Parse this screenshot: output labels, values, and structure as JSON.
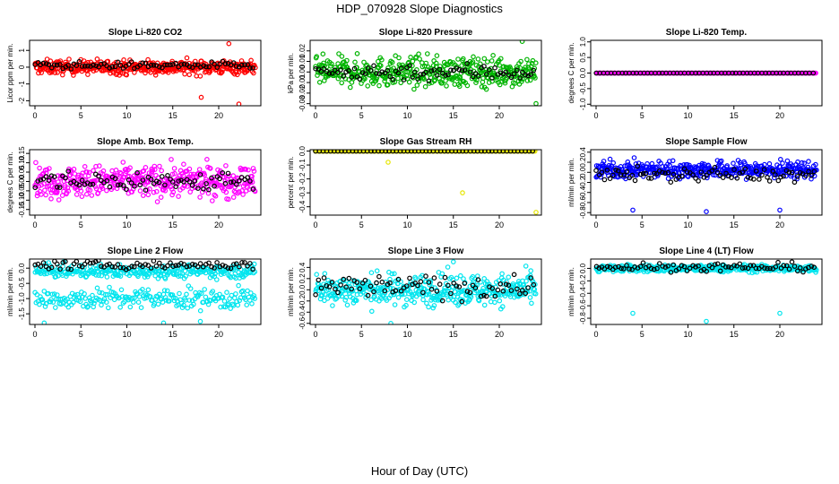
{
  "page": {
    "title": "HDP_070928  Slope Diagnostics",
    "xlabel": "Hour of Day (UTC)"
  },
  "chart_data": [
    {
      "type": "scatter",
      "title": "Slope Li-820 CO2",
      "ylabel": "Licor ppm per min.",
      "xlim": [
        0,
        24
      ],
      "ylim": [
        -2.3,
        1.6
      ],
      "xticks": [
        0,
        5,
        10,
        15,
        20
      ],
      "yticks": [
        -2,
        -1,
        0,
        1
      ],
      "ytick_labels": [
        "-2",
        "-1",
        "0",
        "1"
      ],
      "series": [
        {
          "name": "all",
          "color": "#ff0000",
          "center": 0,
          "spread": 0.3,
          "count": 420,
          "outliers": [
            [
              18.1,
              -1.8
            ],
            [
              21.1,
              1.4
            ],
            [
              22.2,
              -2.2
            ]
          ]
        },
        {
          "name": "hourly",
          "color": "#000000",
          "center": 0.1,
          "spread": 0.15,
          "count": 80
        }
      ]
    },
    {
      "type": "scatter",
      "title": "Slope Li-820 Pressure",
      "ylabel": "kPa per min.",
      "xlim": [
        0,
        24
      ],
      "ylim": [
        -0.032,
        0.03
      ],
      "xticks": [
        0,
        5,
        10,
        15,
        20
      ],
      "yticks": [
        -0.03,
        -0.02,
        -0.01,
        0,
        0.01,
        0.02
      ],
      "ytick_labels": [
        "-0.03",
        "-0.02",
        "-0.01",
        "0.00",
        "0.01",
        "0.02"
      ],
      "series": [
        {
          "name": "all",
          "color": "#00b400",
          "center": 0,
          "spread": 0.01,
          "count": 420,
          "outliers": [
            [
              22.5,
              0.029
            ],
            [
              24,
              -0.03
            ]
          ]
        },
        {
          "name": "hourly",
          "color": "#000000",
          "center": 0,
          "spread": 0.006,
          "count": 80
        }
      ]
    },
    {
      "type": "scatter",
      "title": "Slope Li-820 Temp.",
      "ylabel": "degrees C per min.",
      "xlim": [
        0,
        24
      ],
      "ylim": [
        -1.05,
        1.05
      ],
      "xticks": [
        0,
        5,
        10,
        15,
        20
      ],
      "yticks": [
        -1,
        -0.5,
        0,
        0.5,
        1
      ],
      "ytick_labels": [
        "-1.0",
        "-0.5",
        "0.0",
        "0.5",
        "1.0"
      ],
      "series": [
        {
          "name": "all",
          "color": "#ff00ff",
          "center": 0,
          "spread": 0,
          "count": 260,
          "outliers": []
        },
        {
          "name": "hourly",
          "color": "#000000",
          "center": 0,
          "spread": 0,
          "count": 60
        }
      ]
    },
    {
      "type": "scatter",
      "title": "Slope Amb. Box Temp.",
      "ylabel": "degrees C per min.",
      "xlim": [
        0,
        24
      ],
      "ylim": [
        -0.18,
        0.17
      ],
      "xticks": [
        0,
        5,
        10,
        15,
        20
      ],
      "yticks": [
        -0.15,
        -0.1,
        -0.05,
        0,
        0.05,
        0.1,
        0.15
      ],
      "ytick_labels": [
        "-0.15",
        "-0.10",
        "-0.05",
        "0.00",
        "0.05",
        "0.10",
        "0.15"
      ],
      "series": [
        {
          "name": "all",
          "color": "#ff00ff",
          "center": 0,
          "spread": 0.06,
          "count": 420,
          "outliers": []
        },
        {
          "name": "hourly",
          "color": "#000000",
          "center": 0,
          "spread": 0.04,
          "count": 80
        }
      ]
    },
    {
      "type": "scatter",
      "title": "Slope Gas Stream RH",
      "ylabel": "percent per min.",
      "xlim": [
        0,
        24
      ],
      "ylim": [
        -0.46,
        0.01
      ],
      "xticks": [
        0,
        5,
        10,
        15,
        20
      ],
      "yticks": [
        -0.4,
        -0.3,
        -0.2,
        -0.1,
        0
      ],
      "ytick_labels": [
        "-0.4",
        "-0.3",
        "-0.2",
        "-0.1",
        "0.0"
      ],
      "series": [
        {
          "name": "all",
          "color": "#e6e600",
          "center": 0,
          "spread": 0,
          "count": 200,
          "outliers": [
            [
              7.9,
              -0.08
            ],
            [
              16,
              -0.3
            ],
            [
              24,
              -0.44
            ],
            [
              0,
              0
            ]
          ]
        },
        {
          "name": "hourly",
          "color": "#000000",
          "center": 0,
          "spread": 0,
          "count": 60
        }
      ]
    },
    {
      "type": "scatter",
      "title": "Slope Sample Flow",
      "ylabel": "ml/min per min.",
      "xlim": [
        0,
        24
      ],
      "ylim": [
        -0.85,
        0.45
      ],
      "xticks": [
        0,
        5,
        10,
        15,
        20
      ],
      "yticks": [
        -0.8,
        -0.6,
        -0.4,
        -0.2,
        0,
        0.2,
        0.4
      ],
      "ytick_labels": [
        "-0.8",
        "-0.6",
        "-0.4",
        "-0.2",
        "0.0",
        "0.2",
        "0.4"
      ],
      "series": [
        {
          "name": "all",
          "color": "#0000ff",
          "center": 0.05,
          "spread": 0.12,
          "count": 420,
          "outliers": [
            [
              4,
              -0.75
            ],
            [
              12,
              -0.78
            ],
            [
              20,
              -0.75
            ]
          ]
        },
        {
          "name": "hourly",
          "color": "#000000",
          "center": -0.05,
          "spread": 0.1,
          "count": 80
        }
      ]
    },
    {
      "type": "scatter",
      "title": "Slope Line 2 Flow",
      "ylabel": "ml/min per min.",
      "xlim": [
        0,
        24
      ],
      "ylim": [
        -1.85,
        0.3
      ],
      "xticks": [
        0,
        5,
        10,
        15,
        20
      ],
      "yticks": [
        -1.5,
        -1,
        -0.5,
        0
      ],
      "ytick_labels": [
        "-1.5",
        "-1.0",
        "-0.5",
        "0.0"
      ],
      "series": [
        {
          "name": "all",
          "color": "#00e5ee",
          "center": -0.1,
          "spread": 0.15,
          "count": 300,
          "outliers": []
        },
        {
          "name": "all-low",
          "color": "#00e5ee",
          "center": -1.0,
          "spread": 0.25,
          "count": 220,
          "outliers": [
            [
              1,
              -1.8
            ],
            [
              14,
              -1.8
            ],
            [
              18,
              -1.75
            ]
          ]
        },
        {
          "name": "hourly",
          "color": "#000000",
          "center": 0.1,
          "spread": 0.1,
          "count": 80
        }
      ]
    },
    {
      "type": "scatter",
      "title": "Slope Line 3 Flow",
      "ylabel": "ml/min per min.",
      "xlim": [
        0,
        24
      ],
      "ylim": [
        -0.62,
        0.55
      ],
      "xticks": [
        0,
        5,
        10,
        15,
        20
      ],
      "yticks": [
        -0.6,
        -0.4,
        -0.2,
        0,
        0.2,
        0.4
      ],
      "ytick_labels": [
        "-0.6",
        "-0.4",
        "-0.2",
        "0.0",
        "0.2",
        "0.4"
      ],
      "series": [
        {
          "name": "all",
          "color": "#00e5ee",
          "center": 0,
          "spread": 0.2,
          "count": 420,
          "outliers": [
            [
              8.2,
              -0.6
            ],
            [
              15,
              0.5
            ]
          ]
        },
        {
          "name": "hourly",
          "color": "#000000",
          "center": 0.05,
          "spread": 0.15,
          "count": 80
        }
      ]
    },
    {
      "type": "scatter",
      "title": "Slope Line 4 (LT) Flow",
      "ylabel": "ml/min per min.",
      "xlim": [
        0,
        24
      ],
      "ylim": [
        -0.9,
        0.15
      ],
      "xticks": [
        0,
        5,
        10,
        15,
        20
      ],
      "yticks": [
        -0.8,
        -0.6,
        -0.4,
        -0.2,
        0
      ],
      "ytick_labels": [
        "-0.8",
        "-0.6",
        "-0.4",
        "-0.2",
        "0.0"
      ],
      "series": [
        {
          "name": "all",
          "color": "#00e5ee",
          "center": 0,
          "spread": 0.04,
          "count": 420,
          "outliers": [
            [
              4,
              -0.72
            ],
            [
              12,
              -0.85
            ],
            [
              20,
              -0.72
            ]
          ]
        },
        {
          "name": "hourly",
          "color": "#000000",
          "center": 0.02,
          "spread": 0.05,
          "count": 80
        }
      ]
    }
  ]
}
